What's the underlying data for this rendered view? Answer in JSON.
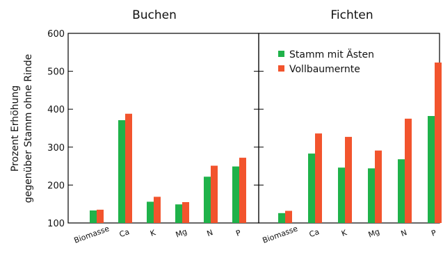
{
  "chart_data": {
    "type": "bar",
    "ylabel_lines": [
      "Prozent Erhöhung",
      "gegenüber Stamm ohne Rinde"
    ],
    "ylim": [
      100,
      600
    ],
    "yticks": [
      100,
      200,
      300,
      400,
      500,
      600
    ],
    "legend": {
      "placement": "top-right of second panel",
      "entries": [
        {
          "name": "Stamm mit Ästen",
          "color": "#1fb24a"
        },
        {
          "name": "Vollbaumernte",
          "color": "#f2542d"
        }
      ]
    },
    "panels": [
      {
        "title": "Buchen",
        "categories": [
          "Biomasse",
          "Ca",
          "K",
          "Mg",
          "N",
          "P"
        ],
        "series": [
          {
            "name": "Stamm mit Ästen",
            "color": "#1fb24a",
            "values": [
              133,
              371,
              156,
              149,
              222,
              249
            ]
          },
          {
            "name": "Vollbaumernte",
            "color": "#f2542d",
            "values": [
              135,
              388,
              169,
              155,
              251,
              272
            ]
          }
        ]
      },
      {
        "title": "Fichten",
        "categories": [
          "Biomasse",
          "Ca",
          "K",
          "Mg",
          "N",
          "P"
        ],
        "series": [
          {
            "name": "Stamm mit Ästen",
            "color": "#1fb24a",
            "values": [
              126,
              283,
              246,
              244,
              268,
              382
            ]
          },
          {
            "name": "Vollbaumernte",
            "color": "#f2542d",
            "values": [
              132,
              336,
              327,
              291,
              375,
              523
            ]
          }
        ]
      }
    ]
  }
}
